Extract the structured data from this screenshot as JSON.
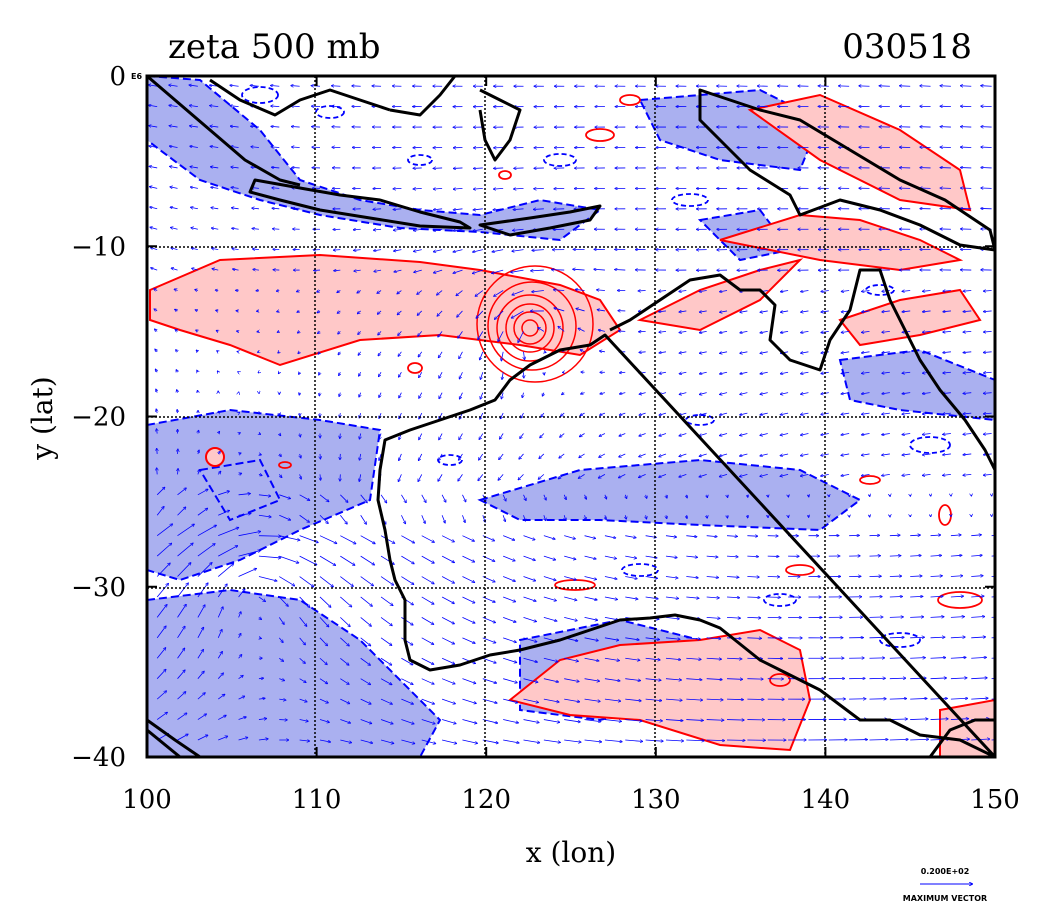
{
  "header": {
    "left_title": "zeta 500 mb",
    "right_title": "030518"
  },
  "corner_label": "E6",
  "legend": {
    "vector_value": "0.200E+02",
    "vector_caption": "MAXIMUM VECTOR"
  },
  "colors": {
    "positive": "#ff0000",
    "negative": "#0000ff",
    "positive_fill": "#ffc8c8",
    "negative_fill": "#aab0f0",
    "coast": "#000000",
    "grid": "#000000"
  },
  "chart_data": {
    "type": "map",
    "xlabel": "x (lon)",
    "ylabel": "y (lat)",
    "xlim": [
      100,
      150
    ],
    "ylim": [
      -40,
      0
    ],
    "x_ticks": [
      100,
      110,
      120,
      130,
      140,
      150
    ],
    "y_ticks": [
      0,
      -10,
      -20,
      -30,
      -40
    ],
    "x_tick_labels": [
      "100",
      "110",
      "120",
      "130",
      "140",
      "150"
    ],
    "y_tick_labels": [
      "0",
      "−10",
      "−20",
      "−30",
      "−40"
    ],
    "grid": true,
    "fields": [
      "relative vorticity contours (red positive, blue negative dashed)",
      "wind vectors"
    ],
    "features": [
      {
        "name": "cyclone-center",
        "lon": 123,
        "lat": -15
      }
    ]
  }
}
